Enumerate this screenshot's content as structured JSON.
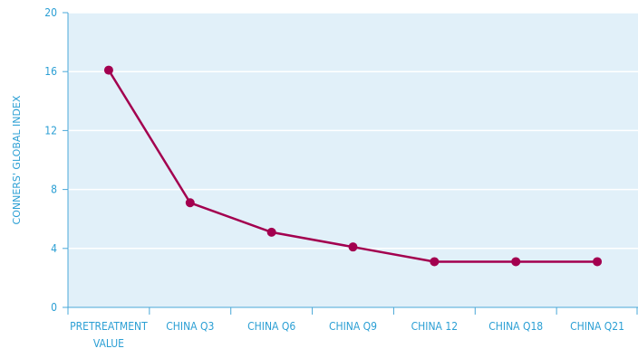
{
  "chart_data": {
    "type": "line",
    "title": "",
    "xlabel": "",
    "ylabel": "CONNERS' GLOBAL INDEX",
    "categories": [
      [
        "PRETREATMENT",
        "VALUE"
      ],
      [
        "CHINA Q3"
      ],
      [
        "CHINA Q6"
      ],
      [
        "CHINA Q9"
      ],
      [
        "CHINA 12"
      ],
      [
        "CHINA Q18"
      ],
      [
        "CHINA Q21"
      ]
    ],
    "series": [
      {
        "values": [
          16.1,
          7.1,
          5.1,
          4.1,
          3.1,
          3.1,
          3.1
        ]
      }
    ],
    "ylim": [
      0,
      20
    ],
    "yticks": [
      0,
      4,
      8,
      12,
      16,
      20
    ],
    "grid": true,
    "colors": {
      "plot_background": "#e1f0f9",
      "gridline": "#ffffff",
      "axis": "#4aa8d8",
      "text": "#2b9fd4",
      "series": "#a3004f"
    }
  }
}
